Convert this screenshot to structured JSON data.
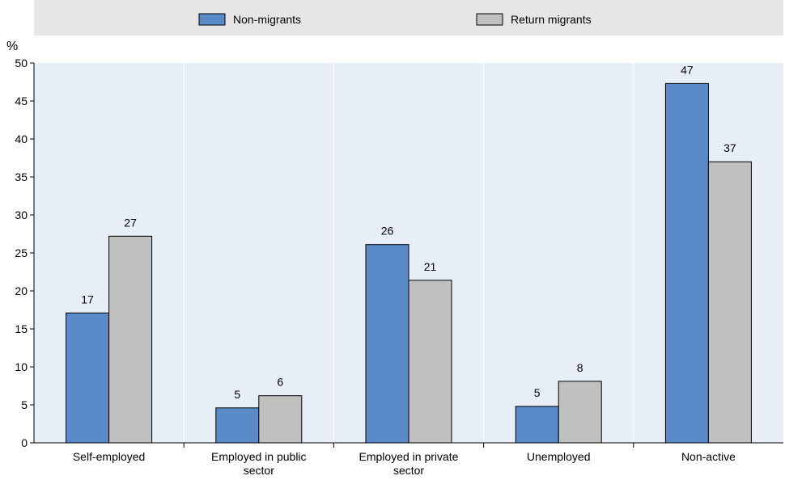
{
  "chart_data": {
    "type": "bar",
    "ylabel": "%",
    "ylim": [
      0,
      50
    ],
    "yticks": [
      0,
      5,
      10,
      15,
      20,
      25,
      30,
      35,
      40,
      45,
      50
    ],
    "categories": [
      [
        "Self-employed"
      ],
      [
        "Employed in public",
        "sector"
      ],
      [
        "Employed in private",
        "sector"
      ],
      [
        "Unemployed"
      ],
      [
        "Non-active"
      ]
    ],
    "series": [
      {
        "name": "Non-migrants",
        "color": "#5b8ac9",
        "values": [
          17.1,
          4.6,
          26.1,
          4.8,
          47.3
        ],
        "labels": [
          "17",
          "5",
          "26",
          "5",
          "47"
        ]
      },
      {
        "name": "Return migrants",
        "color": "#c0c0c0",
        "values": [
          27.2,
          6.2,
          21.4,
          8.1,
          37.0
        ],
        "labels": [
          "27",
          "6",
          "21",
          "8",
          "37"
        ]
      }
    ],
    "grid": "vertical-separators",
    "legend": "top"
  }
}
